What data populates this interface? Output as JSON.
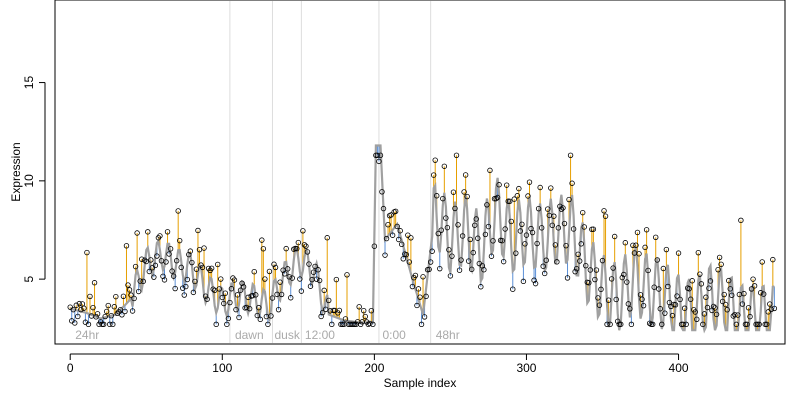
{
  "chart_data": {
    "type": "line",
    "title": "",
    "xlabel": "Sample index",
    "ylabel": "Expression",
    "xlim": [
      -10,
      470
    ],
    "ylim": [
      1.7,
      19.2
    ],
    "x_ticks": [
      0,
      100,
      200,
      300,
      400
    ],
    "y_ticks": [
      5,
      10,
      15
    ],
    "grid": false,
    "colors": {
      "fit": "#a0a0a0",
      "above": "#e69f00",
      "below": "#5b8fd6",
      "points": "#000000",
      "markers": "#dddddd",
      "labels": "#aaaaaa"
    },
    "vertical_markers": [
      {
        "x": 105,
        "label": ""
      },
      {
        "x": 133,
        "label": ""
      },
      {
        "x": 152,
        "label": ""
      },
      {
        "x": 203,
        "label": ""
      },
      {
        "x": 237,
        "label": ""
      }
    ],
    "region_labels": [
      {
        "x": 2,
        "text": "24hr"
      },
      {
        "x": 107,
        "text": "dawn"
      },
      {
        "x": 133,
        "text": "dusk"
      },
      {
        "x": 153,
        "text": "12:00"
      },
      {
        "x": 204,
        "text": "0:00"
      },
      {
        "x": 239,
        "text": "48hr"
      }
    ],
    "fit_knots": [
      [
        0,
        3.5
      ],
      [
        10,
        3.3
      ],
      [
        20,
        3.0
      ],
      [
        30,
        3.2
      ],
      [
        40,
        4.0
      ],
      [
        50,
        5.8
      ],
      [
        60,
        6.3
      ],
      [
        70,
        5.8
      ],
      [
        80,
        5.5
      ],
      [
        90,
        4.5
      ],
      [
        100,
        3.8
      ],
      [
        110,
        4.2
      ],
      [
        120,
        4.0
      ],
      [
        130,
        3.6
      ],
      [
        140,
        5.0
      ],
      [
        150,
        6.0
      ],
      [
        160,
        5.5
      ],
      [
        170,
        3.2
      ],
      [
        180,
        2.9
      ],
      [
        190,
        2.8
      ],
      [
        199,
        2.8
      ],
      [
        201,
        11.8
      ],
      [
        204,
        11.8
      ],
      [
        207,
        7.0
      ],
      [
        215,
        7.8
      ],
      [
        225,
        5.0
      ],
      [
        232,
        3.2
      ],
      [
        240,
        8.5
      ],
      [
        250,
        7.0
      ],
      [
        260,
        7.5
      ],
      [
        270,
        6.5
      ],
      [
        280,
        8.5
      ],
      [
        290,
        7.0
      ],
      [
        300,
        7.5
      ],
      [
        310,
        7.0
      ],
      [
        320,
        7.5
      ],
      [
        330,
        7.5
      ],
      [
        340,
        5.5
      ],
      [
        350,
        4.5
      ],
      [
        360,
        4.0
      ],
      [
        370,
        5.0
      ],
      [
        380,
        4.5
      ],
      [
        390,
        4.2
      ],
      [
        400,
        3.5
      ],
      [
        410,
        3.2
      ],
      [
        420,
        4.0
      ],
      [
        430,
        3.8
      ],
      [
        440,
        3.0
      ],
      [
        450,
        3.0
      ],
      [
        462,
        3.0
      ]
    ],
    "obs_seed": 7,
    "n_obs": 464
  }
}
